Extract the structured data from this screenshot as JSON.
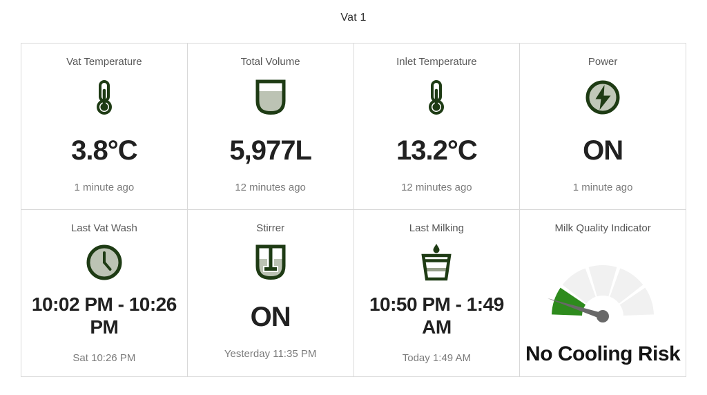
{
  "page": {
    "title": "Vat 1"
  },
  "tiles": [
    {
      "label": "Vat Temperature",
      "value": "3.8°C",
      "timestamp": "1 minute ago",
      "icon": "thermometer-icon"
    },
    {
      "label": "Total Volume",
      "value": "5,977L",
      "timestamp": "12 minutes ago",
      "icon": "milk-vat-icon"
    },
    {
      "label": "Inlet Temperature",
      "value": "13.2°C",
      "timestamp": "12 minutes ago",
      "icon": "thermometer-icon"
    },
    {
      "label": "Power",
      "value": "ON",
      "timestamp": "1 minute ago",
      "icon": "power-bolt-icon"
    },
    {
      "label": "Last Vat Wash",
      "value": "10:02 PM - 10:26 PM",
      "timestamp": "Sat 10:26 PM",
      "icon": "clock-icon"
    },
    {
      "label": "Stirrer",
      "value": "ON",
      "timestamp": "Yesterday 11:35 PM",
      "icon": "stirrer-icon"
    },
    {
      "label": "Last Milking",
      "value": "10:50 PM - 1:49 AM",
      "timestamp": "Today 1:49 AM",
      "icon": "milking-bucket-icon"
    },
    {
      "label": "Milk Quality Indicator",
      "value": "No Cooling Risk",
      "timestamp": "",
      "icon": "quality-gauge-icon"
    }
  ],
  "gauge": {
    "type": "gauge",
    "segments": 5,
    "active_segment_index": 0,
    "active_color": "#2e8b1d",
    "inactive_color": "#f1f1f1",
    "needle_angle_deg": 162,
    "needle_color": "#686868",
    "status_label": "No Cooling Risk"
  },
  "colors": {
    "icon_dark_green": "#1e3b14",
    "icon_sage_fill": "#bcc3b4",
    "tile_border": "#d9d9d9",
    "label_gray": "#585858",
    "timestamp_gray": "#7b7b7b",
    "value_black": "#212121"
  }
}
